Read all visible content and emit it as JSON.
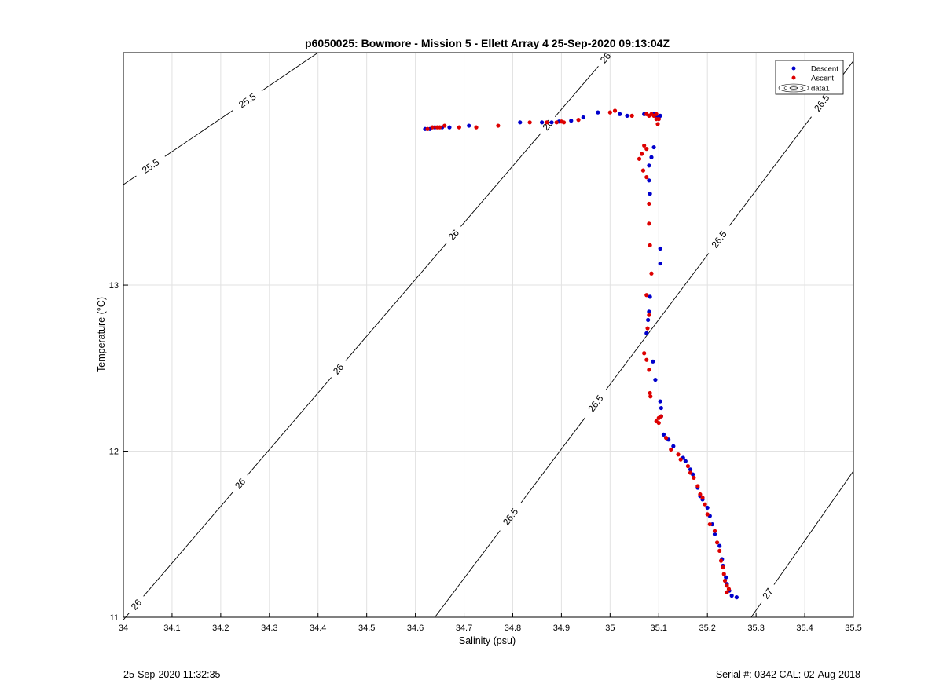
{
  "chart_data": {
    "type": "scatter",
    "title": "p6050025: Bowmore - Mission 5 - Ellett Array 4 25-Sep-2020 09:13:04Z",
    "xlabel": "Salinity (psu)",
    "ylabel": "Temperature (°C)",
    "xlim": [
      34,
      35.5
    ],
    "ylim": [
      11,
      14.4
    ],
    "x_ticks": [
      "34",
      "34.1",
      "34.2",
      "34.3",
      "34.4",
      "34.5",
      "34.6",
      "34.7",
      "34.8",
      "34.9",
      "35",
      "35.1",
      "35.2",
      "35.3",
      "35.4",
      "35.5"
    ],
    "y_ticks": [
      "11",
      "12",
      "13"
    ],
    "grid": true,
    "legend_position": "top-right",
    "legend": [
      "Descent",
      "Ascent",
      "data1"
    ],
    "colors": {
      "descent": "#0000cc",
      "ascent": "#dd0000",
      "contour": "#000000",
      "grid": "#e2e2e2"
    },
    "series": [
      {
        "name": "Descent",
        "points": [
          [
            34.62,
            13.94
          ],
          [
            34.63,
            13.94
          ],
          [
            34.64,
            13.95
          ],
          [
            34.655,
            13.95
          ],
          [
            34.67,
            13.95
          ],
          [
            34.71,
            13.96
          ],
          [
            34.815,
            13.98
          ],
          [
            34.86,
            13.98
          ],
          [
            34.88,
            13.98
          ],
          [
            34.895,
            13.985
          ],
          [
            34.92,
            13.99
          ],
          [
            34.945,
            14.01
          ],
          [
            34.975,
            14.04
          ],
          [
            35.02,
            14.03
          ],
          [
            35.035,
            14.02
          ],
          [
            35.07,
            14.03
          ],
          [
            35.09,
            14.03
          ],
          [
            35.095,
            14.02
          ],
          [
            35.1,
            14.01
          ],
          [
            35.103,
            14.02
          ],
          [
            35.1,
            14.0
          ],
          [
            35.09,
            13.83
          ],
          [
            35.085,
            13.77
          ],
          [
            35.08,
            13.72
          ],
          [
            35.08,
            13.63
          ],
          [
            35.082,
            13.55
          ],
          [
            35.103,
            13.22
          ],
          [
            35.103,
            13.13
          ],
          [
            35.082,
            12.93
          ],
          [
            35.08,
            12.84
          ],
          [
            35.078,
            12.79
          ],
          [
            35.075,
            12.71
          ],
          [
            35.088,
            12.54
          ],
          [
            35.093,
            12.43
          ],
          [
            35.103,
            12.3
          ],
          [
            35.105,
            12.26
          ],
          [
            35.105,
            12.21
          ],
          [
            35.11,
            12.1
          ],
          [
            35.12,
            12.07
          ],
          [
            35.13,
            12.03
          ],
          [
            35.15,
            11.96
          ],
          [
            35.155,
            11.94
          ],
          [
            35.165,
            11.89
          ],
          [
            35.17,
            11.86
          ],
          [
            35.18,
            11.78
          ],
          [
            35.185,
            11.73
          ],
          [
            35.19,
            11.71
          ],
          [
            35.2,
            11.66
          ],
          [
            35.205,
            11.61
          ],
          [
            35.21,
            11.56
          ],
          [
            35.215,
            11.5
          ],
          [
            35.225,
            11.43
          ],
          [
            35.23,
            11.35
          ],
          [
            35.232,
            11.31
          ],
          [
            35.238,
            11.24
          ],
          [
            35.24,
            11.2
          ],
          [
            35.245,
            11.16
          ],
          [
            35.25,
            11.13
          ],
          [
            35.26,
            11.12
          ]
        ]
      },
      {
        "name": "Ascent",
        "points": [
          [
            34.625,
            13.94
          ],
          [
            34.635,
            13.95
          ],
          [
            34.645,
            13.95
          ],
          [
            34.65,
            13.95
          ],
          [
            34.66,
            13.96
          ],
          [
            34.69,
            13.95
          ],
          [
            34.725,
            13.95
          ],
          [
            34.77,
            13.96
          ],
          [
            34.835,
            13.98
          ],
          [
            34.87,
            13.98
          ],
          [
            34.89,
            13.98
          ],
          [
            34.9,
            13.985
          ],
          [
            34.905,
            13.98
          ],
          [
            34.935,
            13.995
          ],
          [
            35.0,
            14.04
          ],
          [
            35.01,
            14.05
          ],
          [
            35.045,
            14.02
          ],
          [
            35.075,
            14.03
          ],
          [
            35.08,
            14.02
          ],
          [
            35.085,
            14.03
          ],
          [
            35.09,
            14.02
          ],
          [
            35.095,
            14.03
          ],
          [
            35.1,
            14.0
          ],
          [
            35.098,
            13.97
          ],
          [
            35.095,
            14.0
          ],
          [
            35.07,
            13.84
          ],
          [
            35.075,
            13.82
          ],
          [
            35.065,
            13.79
          ],
          [
            35.06,
            13.76
          ],
          [
            35.068,
            13.69
          ],
          [
            35.075,
            13.65
          ],
          [
            35.08,
            13.49
          ],
          [
            35.08,
            13.37
          ],
          [
            35.082,
            13.24
          ],
          [
            35.085,
            13.07
          ],
          [
            35.075,
            12.94
          ],
          [
            35.08,
            12.82
          ],
          [
            35.077,
            12.74
          ],
          [
            35.07,
            12.59
          ],
          [
            35.075,
            12.55
          ],
          [
            35.08,
            12.49
          ],
          [
            35.082,
            12.35
          ],
          [
            35.083,
            12.33
          ],
          [
            35.095,
            12.18
          ],
          [
            35.1,
            12.2
          ],
          [
            35.105,
            12.21
          ],
          [
            35.1,
            12.17
          ],
          [
            35.115,
            12.08
          ],
          [
            35.125,
            12.01
          ],
          [
            35.14,
            11.98
          ],
          [
            35.145,
            11.95
          ],
          [
            35.16,
            11.91
          ],
          [
            35.165,
            11.87
          ],
          [
            35.172,
            11.84
          ],
          [
            35.18,
            11.79
          ],
          [
            35.185,
            11.74
          ],
          [
            35.19,
            11.72
          ],
          [
            35.195,
            11.68
          ],
          [
            35.2,
            11.62
          ],
          [
            35.205,
            11.56
          ],
          [
            35.215,
            11.52
          ],
          [
            35.22,
            11.45
          ],
          [
            35.225,
            11.4
          ],
          [
            35.228,
            11.34
          ],
          [
            35.232,
            11.3
          ],
          [
            35.234,
            11.26
          ],
          [
            35.236,
            11.22
          ],
          [
            35.24,
            11.19
          ],
          [
            35.244,
            11.17
          ],
          [
            35.24,
            11.15
          ]
        ]
      }
    ],
    "isopycnals": [
      {
        "sigma": 25.5,
        "p1": [
          34.0,
          13.605
        ],
        "p2": [
          34.4,
          14.4
        ],
        "labels": [
          [
            34.055,
            13.72,
            "25.5"
          ],
          [
            34.255,
            14.11,
            "25.5"
          ]
        ]
      },
      {
        "sigma": 26,
        "p1": [
          34.0,
          10.985
        ],
        "p2": [
          35.0,
          14.4
        ],
        "labels": [
          [
            34.025,
            11.08,
            "26"
          ],
          [
            34.21,
            11.88,
            "26"
          ],
          [
            34.4,
            12.6,
            "26"
          ],
          [
            34.6,
            13.5,
            "26"
          ],
          [
            34.79,
            14.17,
            "26"
          ],
          [
            34.99,
            14.37,
            "26"
          ]
        ]
      },
      {
        "sigma": 26.5,
        "p1": [
          34.64,
          11.0
        ],
        "p2": [
          35.5,
          14.35
        ],
        "labels": [
          [
            34.675,
            11.87,
            "26.5"
          ],
          [
            34.81,
            12.64,
            "26.5"
          ],
          [
            35.19,
            13.35,
            "26.5"
          ],
          [
            35.42,
            14.13,
            "26.5"
          ]
        ]
      },
      {
        "sigma": 27,
        "p1": [
          35.29,
          11.0
        ],
        "p2": [
          35.5,
          11.88
        ],
        "labels": [
          [
            35.325,
            11.14,
            "27"
          ]
        ]
      }
    ]
  },
  "footer": {
    "timestamp": "25-Sep-2020 11:32:35",
    "serial": "Serial #: 0342  CAL: 02-Aug-2018"
  }
}
